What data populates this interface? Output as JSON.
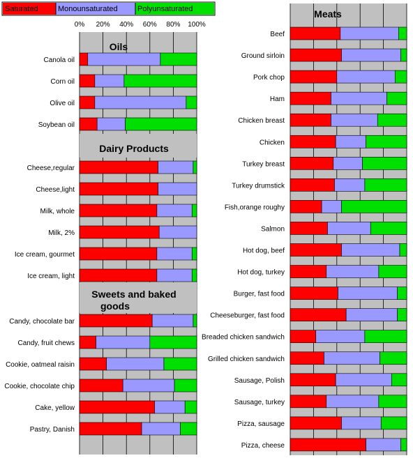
{
  "legend": {
    "items": [
      {
        "label": "Saturated",
        "color": "#ff0000"
      },
      {
        "label": "Monounsaturated",
        "color": "#9999ff"
      },
      {
        "label": "Polyunsaturated",
        "color": "#00e000"
      }
    ]
  },
  "chart_data": [
    {
      "type": "bar",
      "stacked": true,
      "orientation": "horizontal",
      "x_ticks": [
        "0%",
        "20%",
        "40%",
        "60%",
        "80%",
        "100%"
      ],
      "xlim": [
        0,
        100
      ],
      "grid": true,
      "sections": [
        {
          "title": "Oils",
          "categories": [
            "Canola oil",
            "Corn oil",
            "Olive oil",
            "Soybean oil"
          ],
          "series": [
            {
              "name": "Saturated",
              "values": [
                7,
                13,
                13,
                15
              ]
            },
            {
              "name": "Monounsaturated",
              "values": [
                62,
                25,
                78,
                24
              ]
            },
            {
              "name": "Polyunsaturated",
              "values": [
                31,
                62,
                9,
                61
              ]
            }
          ]
        },
        {
          "title": "Dairy Products",
          "categories": [
            "Cheese,regular",
            "Cheese,light",
            "Milk, whole",
            "Milk, 2%",
            "Ice cream, gourmet",
            "Ice cream, light"
          ],
          "series": [
            {
              "name": "Saturated",
              "values": [
                67,
                67,
                66,
                68,
                66,
                66
              ]
            },
            {
              "name": "Monounsaturated",
              "values": [
                30,
                33,
                30,
                32,
                30,
                30
              ]
            },
            {
              "name": "Polyunsaturated",
              "values": [
                3,
                0,
                4,
                0,
                4,
                4
              ]
            }
          ]
        },
        {
          "title": "Sweets and baked goods",
          "categories": [
            "Candy, chocolate bar",
            "Candy, fruit chews",
            "Cookie, oatmeal raisin",
            "Cookie, chocolate chip",
            "Cake, yellow",
            "Pastry, Danish"
          ],
          "series": [
            {
              "name": "Saturated",
              "values": [
                62,
                14,
                23,
                37,
                64,
                53
              ]
            },
            {
              "name": "Monounsaturated",
              "values": [
                35,
                46,
                49,
                44,
                26,
                33
              ]
            },
            {
              "name": "Polyunsaturated",
              "values": [
                3,
                40,
                28,
                19,
                10,
                14
              ]
            }
          ]
        }
      ]
    },
    {
      "type": "bar",
      "stacked": true,
      "orientation": "horizontal",
      "xlim": [
        0,
        100
      ],
      "grid": true,
      "sections": [
        {
          "title": "Meats",
          "categories": [
            "Beef",
            "Ground sirloin",
            "Pork chop",
            "Ham",
            "Chicken breast",
            "Chicken",
            "Turkey breast",
            "Turkey drumstick",
            "Fish,orange roughy",
            "Salmon",
            "Hot dog, beef",
            "Hot dog, turkey",
            "Burger, fast food",
            "Cheeseburger, fast food",
            "Breaded chicken sandwich",
            "Grilled chicken sandwich",
            "Sausage, Polish",
            "Sausage, turkey",
            "Pizza, sausage",
            "Pizza, cheese"
          ],
          "series": [
            {
              "name": "Saturated",
              "values": [
                43,
                44,
                40,
                35,
                35,
                39,
                37,
                38,
                27,
                32,
                44,
                31,
                41,
                48,
                22,
                29,
                39,
                31,
                44,
                65
              ]
            },
            {
              "name": "Monounsaturated",
              "values": [
                50,
                51,
                50,
                48,
                40,
                26,
                25,
                26,
                17,
                37,
                50,
                45,
                51,
                44,
                42,
                48,
                48,
                45,
                34,
                30
              ]
            },
            {
              "name": "Polyunsaturated",
              "values": [
                7,
                5,
                10,
                17,
                25,
                35,
                38,
                36,
                56,
                31,
                6,
                24,
                8,
                8,
                36,
                23,
                13,
                24,
                22,
                5
              ]
            }
          ]
        }
      ]
    }
  ]
}
